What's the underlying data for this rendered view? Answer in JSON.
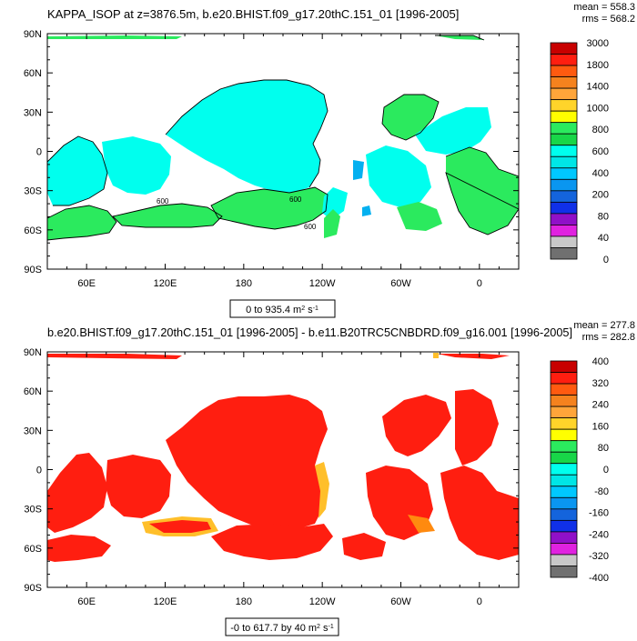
{
  "colors": {
    "top_fill": [
      "#00FFEE",
      "#2BEA5E",
      "#04B0F0"
    ],
    "bottom_fill": [
      "#FF1E10",
      "#FFBF2A",
      "#FF8A0F"
    ],
    "coast": "#000000",
    "frame": "#000000"
  },
  "chart_data": [
    {
      "type": "heatmap",
      "title": "KAPPA_ISOP at z=3876.5m, b.e20.BHIST.f09_g17.20thC.151_01 [1996-2005]",
      "stats": {
        "mean": "mean = 558.3",
        "rms": "rms = 568.2"
      },
      "x_ticks": [
        "60E",
        "120E",
        "180",
        "120W",
        "60W",
        "0"
      ],
      "x_tick_lon": [
        60,
        120,
        180,
        240,
        300,
        360
      ],
      "y_ticks": [
        "90N",
        "60N",
        "30N",
        "0",
        "30S",
        "60S",
        "90S"
      ],
      "y_tick_lat": [
        90,
        60,
        30,
        0,
        -30,
        -60,
        -90
      ],
      "lon_range": [
        30,
        390
      ],
      "lat_range": [
        -90,
        90
      ],
      "colorbar_labels": [
        "3000",
        "1800",
        "1400",
        "1000",
        "800",
        "600",
        "400",
        "200",
        "80",
        "40",
        "0"
      ],
      "colorbar_colors": [
        "#C80000",
        "#FF1E10",
        "#FF5A10",
        "#F5821E",
        "#FFA53A",
        "#FFD42A",
        "#FFFF00",
        "#2BEA5E",
        "#18D648",
        "#00FFEE",
        "#00E6E6",
        "#00C8FF",
        "#0A96F0",
        "#1464DC",
        "#1030E8",
        "#9010C8",
        "#E022E0",
        "#C8C8C8",
        "#707070"
      ],
      "range_note_main": "0 to 935.4 m",
      "range_note_sup1": "2",
      "range_note_mid": " s",
      "range_note_sup2": "-1",
      "contour_labels": [
        "600",
        "600",
        "600"
      ]
    },
    {
      "type": "heatmap",
      "title": "b.e20.BHIST.f09_g17.20thC.151_01 [1996-2005] - b.e11.B20TRC5CNBDRD.f09_g16.001 [1996-2005]",
      "stats": {
        "mean": "mean = 277.8",
        "rms": "rms = 282.8"
      },
      "x_ticks": [
        "60E",
        "120E",
        "180",
        "120W",
        "60W",
        "0"
      ],
      "x_tick_lon": [
        60,
        120,
        180,
        240,
        300,
        360
      ],
      "y_ticks": [
        "90N",
        "60N",
        "30N",
        "0",
        "30S",
        "60S",
        "90S"
      ],
      "y_tick_lat": [
        90,
        60,
        30,
        0,
        -30,
        -60,
        -90
      ],
      "lon_range": [
        30,
        390
      ],
      "lat_range": [
        -90,
        90
      ],
      "colorbar_labels": [
        "400",
        "320",
        "240",
        "160",
        "80",
        "0",
        "-80",
        "-160",
        "-240",
        "-320",
        "-400"
      ],
      "colorbar_colors": [
        "#C80000",
        "#FF1E10",
        "#FF5A10",
        "#F5821E",
        "#FFA53A",
        "#FFD42A",
        "#FFFF00",
        "#2BEA5E",
        "#18D648",
        "#00FFEE",
        "#00E6E6",
        "#00C8FF",
        "#0A96F0",
        "#1464DC",
        "#1030E8",
        "#9010C8",
        "#E022E0",
        "#C8C8C8",
        "#707070"
      ],
      "range_note_main": "-0 to 617.7 by 40 m",
      "range_note_sup1": "2",
      "range_note_mid": " s",
      "range_note_sup2": "-1"
    }
  ]
}
